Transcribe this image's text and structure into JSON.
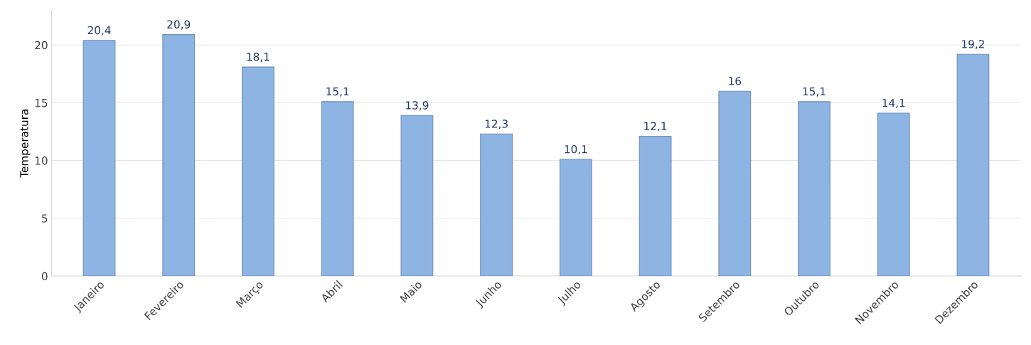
{
  "chart_data": {
    "type": "bar",
    "ylabel": "Temperatura",
    "categories": [
      "Janeiro",
      "Fevereiro",
      "Março",
      "Abril",
      "Maio",
      "Junho",
      "Julho",
      "Agosto",
      "Setembro",
      "Outubro",
      "Novembro",
      "Dezembro"
    ],
    "values": [
      20.4,
      20.9,
      18.1,
      15.1,
      13.9,
      12.3,
      10.1,
      12.1,
      16,
      15.1,
      14.1,
      19.2
    ],
    "value_labels": [
      "20,4",
      "20,9",
      "18,1",
      "15,1",
      "13,9",
      "12,3",
      "10,1",
      "12,1",
      "16",
      "15,1",
      "14,1",
      "19,2"
    ],
    "color": "#8db4e2",
    "ylim": [
      0,
      23
    ],
    "yticks": [
      0,
      5,
      10,
      15,
      20
    ],
    "grid": "y"
  }
}
